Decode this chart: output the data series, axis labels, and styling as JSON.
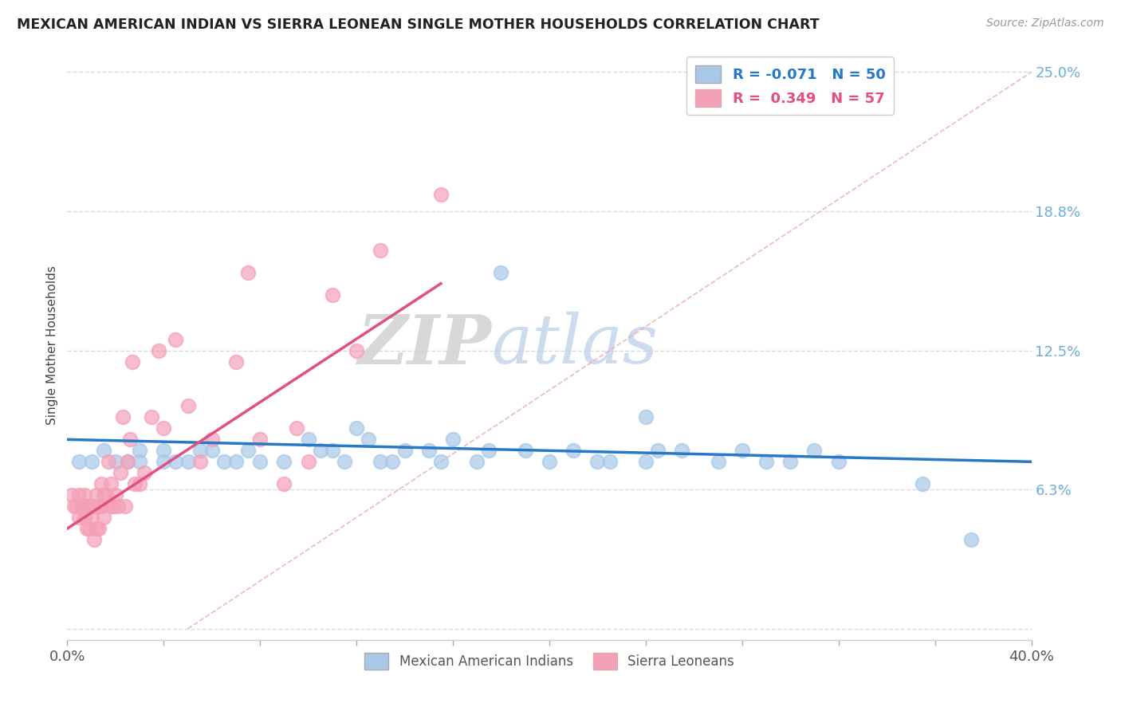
{
  "title": "MEXICAN AMERICAN INDIAN VS SIERRA LEONEAN SINGLE MOTHER HOUSEHOLDS CORRELATION CHART",
  "source": "Source: ZipAtlas.com",
  "ylabel": "Single Mother Households",
  "xlim": [
    0,
    0.4
  ],
  "ylim": [
    -0.005,
    0.26
  ],
  "yticks": [
    0.0,
    0.0625,
    0.125,
    0.1875,
    0.25
  ],
  "ytick_labels": [
    "",
    "6.3%",
    "12.5%",
    "18.8%",
    "25.0%"
  ],
  "xticks": [
    0.0,
    0.04,
    0.08,
    0.12,
    0.16,
    0.2,
    0.24,
    0.28,
    0.32,
    0.36,
    0.4
  ],
  "xtick_label_show": [
    "0.0%",
    "",
    "",
    "",
    "",
    "",
    "",
    "",
    "",
    "",
    "40.0%"
  ],
  "legend_r1": "R = -0.071",
  "legend_n1": "N = 50",
  "legend_r2": "R =  0.349",
  "legend_n2": "N = 57",
  "color_blue": "#a8c8e8",
  "color_pink": "#f4a0b8",
  "color_blue_line": "#2878c8",
  "color_pink_line": "#e05080",
  "color_diag": "#e8a0b0",
  "watermark_zip": "ZIP",
  "watermark_atlas": "atlas",
  "blue_x": [
    0.005,
    0.01,
    0.015,
    0.02,
    0.025,
    0.03,
    0.03,
    0.04,
    0.04,
    0.045,
    0.05,
    0.055,
    0.06,
    0.065,
    0.07,
    0.075,
    0.08,
    0.09,
    0.1,
    0.105,
    0.11,
    0.115,
    0.12,
    0.125,
    0.13,
    0.135,
    0.14,
    0.15,
    0.155,
    0.16,
    0.17,
    0.175,
    0.18,
    0.19,
    0.2,
    0.21,
    0.22,
    0.225,
    0.24,
    0.245,
    0.255,
    0.27,
    0.28,
    0.29,
    0.3,
    0.31,
    0.32,
    0.24,
    0.355,
    0.375
  ],
  "blue_y": [
    0.075,
    0.075,
    0.08,
    0.075,
    0.075,
    0.08,
    0.075,
    0.075,
    0.08,
    0.075,
    0.075,
    0.08,
    0.08,
    0.075,
    0.075,
    0.08,
    0.075,
    0.075,
    0.085,
    0.08,
    0.08,
    0.075,
    0.09,
    0.085,
    0.075,
    0.075,
    0.08,
    0.08,
    0.075,
    0.085,
    0.075,
    0.08,
    0.16,
    0.08,
    0.075,
    0.08,
    0.075,
    0.075,
    0.075,
    0.08,
    0.08,
    0.075,
    0.08,
    0.075,
    0.075,
    0.08,
    0.075,
    0.095,
    0.065,
    0.04
  ],
  "pink_x": [
    0.002,
    0.003,
    0.004,
    0.005,
    0.005,
    0.006,
    0.007,
    0.007,
    0.008,
    0.008,
    0.009,
    0.009,
    0.01,
    0.01,
    0.011,
    0.011,
    0.012,
    0.012,
    0.013,
    0.013,
    0.014,
    0.014,
    0.015,
    0.015,
    0.016,
    0.017,
    0.018,
    0.018,
    0.019,
    0.02,
    0.021,
    0.022,
    0.023,
    0.024,
    0.025,
    0.026,
    0.027,
    0.028,
    0.03,
    0.032,
    0.035,
    0.038,
    0.04,
    0.045,
    0.05,
    0.055,
    0.06,
    0.07,
    0.075,
    0.08,
    0.09,
    0.095,
    0.1,
    0.11,
    0.12,
    0.13,
    0.155
  ],
  "pink_y": [
    0.06,
    0.055,
    0.055,
    0.06,
    0.05,
    0.055,
    0.06,
    0.05,
    0.055,
    0.045,
    0.055,
    0.045,
    0.055,
    0.05,
    0.055,
    0.04,
    0.06,
    0.045,
    0.055,
    0.045,
    0.055,
    0.065,
    0.06,
    0.05,
    0.06,
    0.075,
    0.055,
    0.065,
    0.055,
    0.06,
    0.055,
    0.07,
    0.095,
    0.055,
    0.075,
    0.085,
    0.12,
    0.065,
    0.065,
    0.07,
    0.095,
    0.125,
    0.09,
    0.13,
    0.1,
    0.075,
    0.085,
    0.12,
    0.16,
    0.085,
    0.065,
    0.09,
    0.075,
    0.15,
    0.125,
    0.17,
    0.195
  ]
}
